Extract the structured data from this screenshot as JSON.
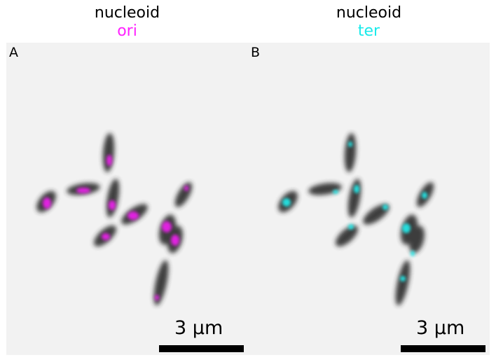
{
  "panels": [
    {
      "label": "A",
      "title_line1": "nucleoid",
      "title_line2": "ori",
      "title_line2_color": "#ff22ff",
      "scale_bar_label": "3 µm",
      "signal_color": "#ff1fff"
    },
    {
      "label": "B",
      "title_line1": "nucleoid",
      "title_line2": "ter",
      "title_line2_color": "#19eaea",
      "scale_bar_label": "3 µm",
      "signal_color": "#22eeee"
    }
  ],
  "colors": {
    "image_background": "#f2f2f2",
    "cell_body": "#2a2a2a",
    "scale_bar": "#000000"
  }
}
